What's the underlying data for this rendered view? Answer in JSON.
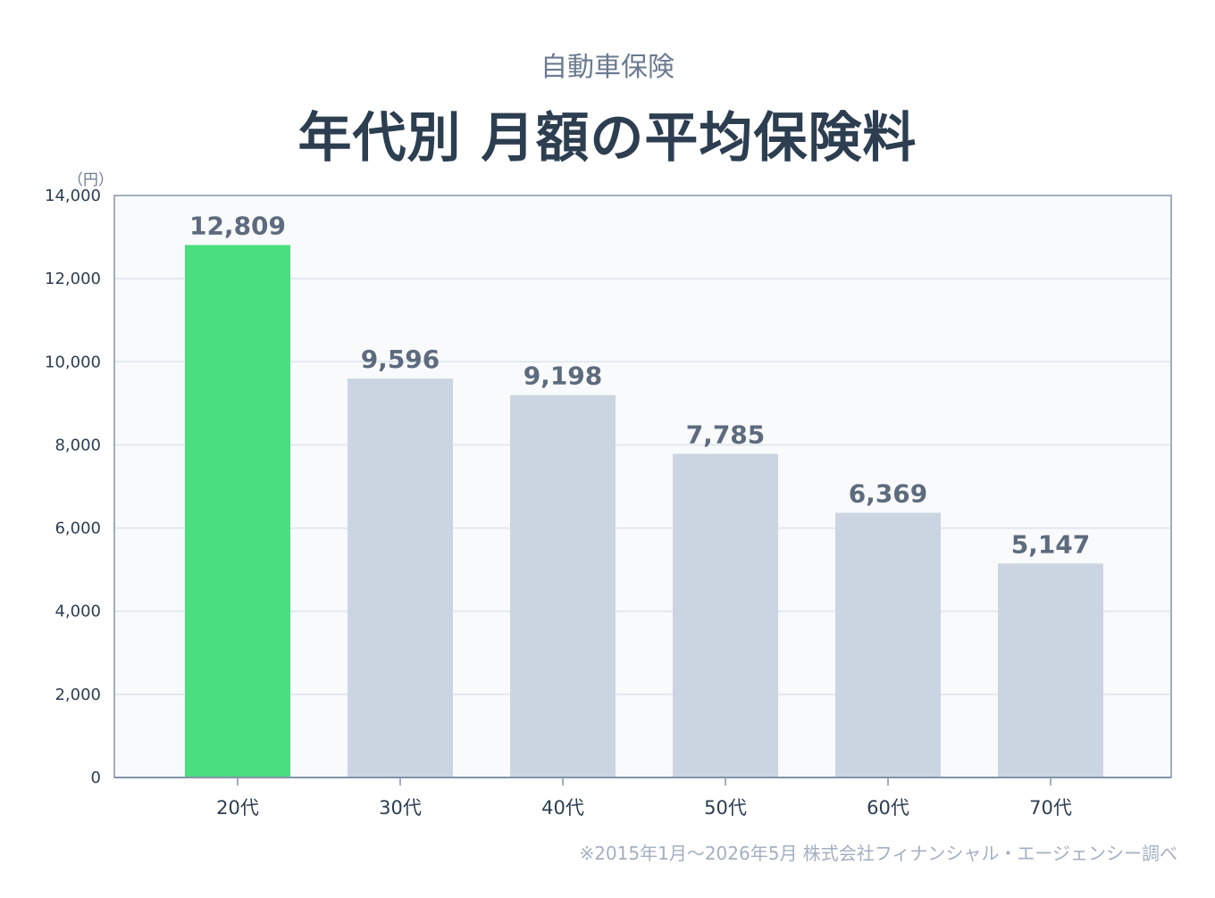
{
  "subtitle": "自動車保険",
  "title": "年代別 月額の平均保険料",
  "unit_label": "（円）",
  "footnote": "※2015年1月〜2026年5月 株式会社フィナンシャル・エージェンシー調べ",
  "colors": {
    "highlight": "#4ade80",
    "bar": "#cbd5e1",
    "plot_bg": "#f8fafc",
    "axis": "#8494a8",
    "grid": "#dde4ec"
  },
  "chart_data": {
    "type": "bar",
    "title": "年代別 月額の平均保険料",
    "subtitle": "自動車保険",
    "xlabel": "",
    "ylabel": "（円）",
    "ylim": [
      0,
      14000
    ],
    "yticks": [
      0,
      2000,
      4000,
      6000,
      8000,
      10000,
      12000,
      14000
    ],
    "ytick_labels": [
      "0",
      "2,000",
      "4,000",
      "6,000",
      "8,000",
      "10,000",
      "12,000",
      "14,000"
    ],
    "grid": true,
    "categories": [
      "20代",
      "30代",
      "40代",
      "50代",
      "60代",
      "70代"
    ],
    "values": [
      12809,
      9596,
      9198,
      7785,
      6369,
      5147
    ],
    "value_labels": [
      "12,809",
      "9,596",
      "9,198",
      "7,785",
      "6,369",
      "5,147"
    ],
    "highlight_index": 0
  }
}
